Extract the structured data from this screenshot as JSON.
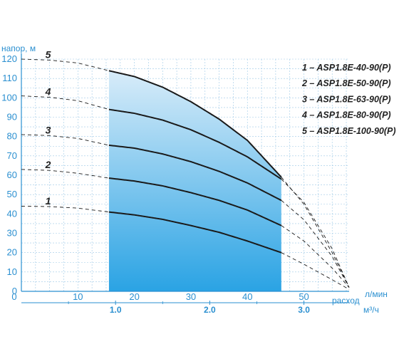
{
  "chart_data": {
    "type": "line",
    "ylabel": "напор, м",
    "xlabel": "расход",
    "x_unit": "л/мин",
    "x2_unit": "м³/ч",
    "x_ticks": [
      0,
      10,
      20,
      30,
      40,
      50
    ],
    "x2_ticks": [
      "1.0",
      "2.0",
      "3.0"
    ],
    "x2_values": [
      1.0,
      2.0,
      3.0
    ],
    "y_ticks": [
      0,
      10,
      20,
      30,
      40,
      50,
      60,
      70,
      80,
      90,
      100,
      110,
      120
    ],
    "xlim": [
      0,
      58
    ],
    "ylim": [
      0,
      120
    ],
    "grid": true,
    "working_range": [
      15.5,
      46
    ],
    "colors": {
      "axis": "#2a8fd0",
      "grid": "#9cc8e6",
      "curve": "#1a1a1a",
      "band_top": "#d8ecf9",
      "band_bottom": "#2aa3e4"
    },
    "series": [
      {
        "name": "1 – ASP1.8E-40-90(P)",
        "label": "1",
        "points": [
          [
            0,
            44
          ],
          [
            5,
            43.8
          ],
          [
            10,
            43
          ],
          [
            15.5,
            41
          ],
          [
            20,
            39.5
          ],
          [
            25,
            37.2
          ],
          [
            30,
            34
          ],
          [
            35,
            30.5
          ],
          [
            40,
            26
          ],
          [
            46,
            20
          ],
          [
            50,
            14
          ],
          [
            55,
            6
          ],
          [
            58,
            1
          ]
        ]
      },
      {
        "name": "2 – ASP1.8E-50-90(P)",
        "label": "2",
        "points": [
          [
            0,
            63
          ],
          [
            5,
            62.5
          ],
          [
            10,
            61
          ],
          [
            15.5,
            58.5
          ],
          [
            20,
            57
          ],
          [
            25,
            54.5
          ],
          [
            30,
            51
          ],
          [
            35,
            47
          ],
          [
            40,
            42
          ],
          [
            46,
            34
          ],
          [
            50,
            26
          ],
          [
            55,
            12
          ],
          [
            58,
            2
          ]
        ]
      },
      {
        "name": "3 – ASP1.8E-63-90(P)",
        "label": "3",
        "points": [
          [
            0,
            81
          ],
          [
            5,
            80.5
          ],
          [
            10,
            79
          ],
          [
            15.5,
            75.5
          ],
          [
            20,
            74
          ],
          [
            25,
            71
          ],
          [
            30,
            67
          ],
          [
            35,
            62
          ],
          [
            40,
            56
          ],
          [
            46,
            47
          ],
          [
            50,
            37
          ],
          [
            55,
            18
          ],
          [
            58,
            2
          ]
        ]
      },
      {
        "name": "4 – ASP1.8E-80-90(P)",
        "label": "4",
        "points": [
          [
            0,
            101
          ],
          [
            5,
            100.3
          ],
          [
            10,
            98.5
          ],
          [
            15.5,
            94
          ],
          [
            20,
            92
          ],
          [
            25,
            88.5
          ],
          [
            30,
            83.5
          ],
          [
            35,
            77
          ],
          [
            40,
            69.5
          ],
          [
            46,
            58
          ],
          [
            50,
            46
          ],
          [
            55,
            22
          ],
          [
            58,
            2
          ]
        ]
      },
      {
        "name": "5 – ASP1.8E-100-90(P)",
        "label": "5",
        "points": [
          [
            0,
            120
          ],
          [
            5,
            119.5
          ],
          [
            10,
            118
          ],
          [
            15.5,
            114
          ],
          [
            20,
            111
          ],
          [
            25,
            105.5
          ],
          [
            30,
            98
          ],
          [
            35,
            89
          ],
          [
            40,
            78
          ],
          [
            46,
            59
          ],
          [
            50,
            45
          ],
          [
            55,
            20
          ],
          [
            58,
            2
          ]
        ]
      }
    ]
  }
}
